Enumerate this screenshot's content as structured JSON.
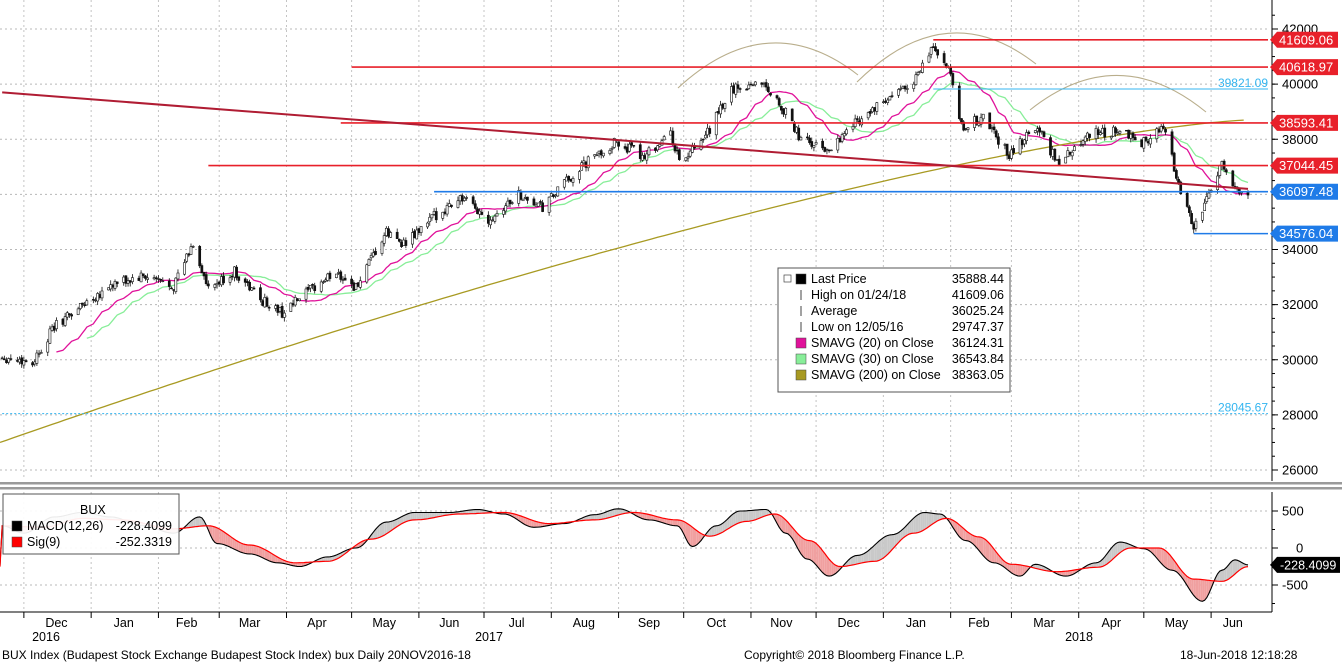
{
  "chart_data": [
    {
      "type": "candlestick",
      "title": "",
      "x_ticks": [
        "Dec",
        "Jan",
        "Feb",
        "Mar",
        "Apr",
        "May",
        "Jun",
        "Jul",
        "Aug",
        "Sep",
        "Oct",
        "Nov",
        "Dec",
        "Jan",
        "Feb",
        "Mar",
        "Apr",
        "May",
        "Jun"
      ],
      "year_labels": [
        "2016",
        "2017",
        "2018"
      ],
      "y_ticks": [
        "42000",
        "40000",
        "38000",
        "36000",
        "34000",
        "32000",
        "30000",
        "28000",
        "26000"
      ],
      "ylim": [
        25200,
        42800
      ],
      "grid": true,
      "price_path": [
        [
          "2016-11-21",
          30100
        ],
        [
          "2016-12-05",
          29900
        ],
        [
          "2016-12-15",
          31200
        ],
        [
          "2016-12-28",
          32000
        ],
        [
          "2017-01-10",
          32700
        ],
        [
          "2017-01-25",
          33000
        ],
        [
          "2017-02-08",
          32700
        ],
        [
          "2017-02-17",
          34200
        ],
        [
          "2017-02-24",
          32500
        ],
        [
          "2017-03-08",
          33200
        ],
        [
          "2017-03-20",
          32200
        ],
        [
          "2017-03-30",
          31700
        ],
        [
          "2017-04-10",
          32400
        ],
        [
          "2017-04-24",
          33200
        ],
        [
          "2017-05-03",
          32600
        ],
        [
          "2017-05-17",
          34600
        ],
        [
          "2017-05-26",
          34200
        ],
        [
          "2017-06-08",
          35200
        ],
        [
          "2017-06-20",
          35900
        ],
        [
          "2017-07-03",
          35100
        ],
        [
          "2017-07-17",
          36000
        ],
        [
          "2017-07-28",
          35500
        ],
        [
          "2017-08-07",
          36400
        ],
        [
          "2017-08-18",
          37200
        ],
        [
          "2017-08-31",
          37900
        ],
        [
          "2017-09-12",
          37400
        ],
        [
          "2017-09-25",
          38200
        ],
        [
          "2017-09-29",
          37200
        ],
        [
          "2017-10-09",
          37800
        ],
        [
          "2017-10-23",
          39800
        ],
        [
          "2017-11-06",
          40100
        ],
        [
          "2017-11-15",
          39200
        ],
        [
          "2017-11-24",
          38000
        ],
        [
          "2017-12-06",
          37600
        ],
        [
          "2017-12-20",
          38700
        ],
        [
          "2018-01-05",
          39500
        ],
        [
          "2018-01-17",
          40300
        ],
        [
          "2018-01-24",
          41400
        ],
        [
          "2018-02-01",
          40300
        ],
        [
          "2018-02-06",
          38400
        ],
        [
          "2018-02-16",
          38800
        ],
        [
          "2018-02-28",
          37400
        ],
        [
          "2018-03-12",
          38500
        ],
        [
          "2018-03-23",
          37100
        ],
        [
          "2018-04-05",
          38200
        ],
        [
          "2018-04-18",
          38300
        ],
        [
          "2018-04-30",
          37900
        ],
        [
          "2018-05-10",
          38400
        ],
        [
          "2018-05-18",
          36200
        ],
        [
          "2018-05-24",
          34800
        ],
        [
          "2018-05-31",
          35900
        ],
        [
          "2018-06-06",
          37200
        ],
        [
          "2018-06-12",
          36300
        ],
        [
          "2018-06-18",
          35888
        ]
      ],
      "horizontal_levels": [
        {
          "value": 41609.06,
          "label": "41609.06",
          "color": "#e8202a",
          "from": "2018-01-24"
        },
        {
          "value": 40618.97,
          "label": "40618.97",
          "color": "#e8202a",
          "from": "2017-05-01"
        },
        {
          "value": 39821.09,
          "label": "39821.09",
          "color": "#33b5f0",
          "from": "2018-01-24"
        },
        {
          "value": 38593.41,
          "label": "38593.41",
          "color": "#e8202a",
          "from": "2017-04-26"
        },
        {
          "value": 37044.45,
          "label": "37044.45",
          "color": "#e8202a",
          "from": "2017-02-24"
        },
        {
          "value": 36097.48,
          "label": "36097.48",
          "color": "#1f7be8",
          "from": "2017-06-08"
        },
        {
          "value": 34576.04,
          "label": "34576.04",
          "color": "#1f7be8",
          "from": "2018-05-24"
        },
        {
          "value": 28045.67,
          "label": "28045.67",
          "color": "#33b5f0",
          "from": "2016-11-21"
        }
      ],
      "trendline": [
        [
          "2016-11-21",
          39700
        ],
        [
          "2018-06-18",
          36200
        ]
      ],
      "legend": [
        {
          "label": "Last Price",
          "value": "35888.44",
          "color": "#000000"
        },
        {
          "label": "High on 01/24/18",
          "value": "41609.06",
          "color": ""
        },
        {
          "label": "Average",
          "value": "36025.24",
          "color": ""
        },
        {
          "label": "Low on 12/05/16",
          "value": "29747.37",
          "color": ""
        },
        {
          "label": "SMAVG (20) on Close",
          "value": "36124.31",
          "color": "#e0129a"
        },
        {
          "label": "SMAVG (30) on Close",
          "value": "36543.84",
          "color": "#88ee99"
        },
        {
          "label": "SMAVG (200) on Close",
          "value": "38363.05",
          "color": "#a89a22"
        }
      ]
    },
    {
      "type": "line",
      "title": "BUX",
      "y_ticks": [
        "500",
        "0",
        "-500"
      ],
      "ylim": [
        -850,
        650
      ],
      "series": [
        {
          "name": "MACD(12,26)",
          "value": "-228.4099",
          "color": "#000000"
        },
        {
          "name": "Sig(9)",
          "value": "-252.3319",
          "color": "#ff0000"
        }
      ],
      "macd_path": [
        [
          "2016-11-21",
          300
        ],
        [
          "2016-12-01",
          200
        ],
        [
          "2016-12-15",
          420
        ],
        [
          "2016-12-28",
          480
        ],
        [
          "2017-01-10",
          420
        ],
        [
          "2017-01-25",
          300
        ],
        [
          "2017-02-08",
          200
        ],
        [
          "2017-02-20",
          420
        ],
        [
          "2017-02-28",
          60
        ],
        [
          "2017-03-15",
          -80
        ],
        [
          "2017-03-28",
          -200
        ],
        [
          "2017-04-07",
          -250
        ],
        [
          "2017-04-20",
          -120
        ],
        [
          "2017-05-03",
          0
        ],
        [
          "2017-05-17",
          350
        ],
        [
          "2017-05-30",
          480
        ],
        [
          "2017-06-15",
          480
        ],
        [
          "2017-06-28",
          520
        ],
        [
          "2017-07-10",
          460
        ],
        [
          "2017-07-24",
          280
        ],
        [
          "2017-08-07",
          330
        ],
        [
          "2017-08-21",
          450
        ],
        [
          "2017-09-01",
          530
        ],
        [
          "2017-09-15",
          380
        ],
        [
          "2017-09-28",
          300
        ],
        [
          "2017-10-05",
          20
        ],
        [
          "2017-10-16",
          300
        ],
        [
          "2017-10-27",
          500
        ],
        [
          "2017-11-08",
          520
        ],
        [
          "2017-11-17",
          200
        ],
        [
          "2017-11-27",
          -150
        ],
        [
          "2017-12-07",
          -380
        ],
        [
          "2017-12-20",
          -100
        ],
        [
          "2018-01-05",
          180
        ],
        [
          "2018-01-20",
          480
        ],
        [
          "2018-01-27",
          460
        ],
        [
          "2018-02-08",
          100
        ],
        [
          "2018-02-21",
          -200
        ],
        [
          "2018-03-05",
          -380
        ],
        [
          "2018-03-12",
          -220
        ],
        [
          "2018-03-26",
          -380
        ],
        [
          "2018-04-09",
          -200
        ],
        [
          "2018-04-20",
          80
        ],
        [
          "2018-05-01",
          -10
        ],
        [
          "2018-05-14",
          -300
        ],
        [
          "2018-05-28",
          -720
        ],
        [
          "2018-06-06",
          -300
        ],
        [
          "2018-06-12",
          -160
        ],
        [
          "2018-06-18",
          -228
        ]
      ],
      "signal_path": [
        [
          "2016-11-21",
          300
        ],
        [
          "2016-12-10",
          280
        ],
        [
          "2016-12-28",
          400
        ],
        [
          "2017-01-15",
          380
        ],
        [
          "2017-02-08",
          260
        ],
        [
          "2017-02-24",
          300
        ],
        [
          "2017-03-15",
          40
        ],
        [
          "2017-04-05",
          -200
        ],
        [
          "2017-04-20",
          -180
        ],
        [
          "2017-05-10",
          120
        ],
        [
          "2017-05-30",
          380
        ],
        [
          "2017-06-20",
          460
        ],
        [
          "2017-07-10",
          480
        ],
        [
          "2017-07-31",
          330
        ],
        [
          "2017-08-21",
          380
        ],
        [
          "2017-09-08",
          480
        ],
        [
          "2017-09-28",
          380
        ],
        [
          "2017-10-13",
          160
        ],
        [
          "2017-10-30",
          360
        ],
        [
          "2017-11-12",
          460
        ],
        [
          "2017-11-28",
          100
        ],
        [
          "2017-12-12",
          -250
        ],
        [
          "2017-12-28",
          -180
        ],
        [
          "2018-01-15",
          200
        ],
        [
          "2018-01-30",
          400
        ],
        [
          "2018-02-14",
          150
        ],
        [
          "2018-03-01",
          -220
        ],
        [
          "2018-03-22",
          -320
        ],
        [
          "2018-04-10",
          -260
        ],
        [
          "2018-04-25",
          0
        ],
        [
          "2018-05-08",
          0
        ],
        [
          "2018-05-24",
          -420
        ],
        [
          "2018-06-06",
          -450
        ],
        [
          "2018-06-18",
          -252
        ]
      ]
    }
  ],
  "footer": {
    "left": "BUX Index (Budapest Stock Exchange Budapest Stock Index) bux  Daily 20NOV2016-18",
    "center": "Copyright© 2018 Bloomberg Finance L.P.",
    "right": "18-Jun-2018 12:18:28"
  }
}
